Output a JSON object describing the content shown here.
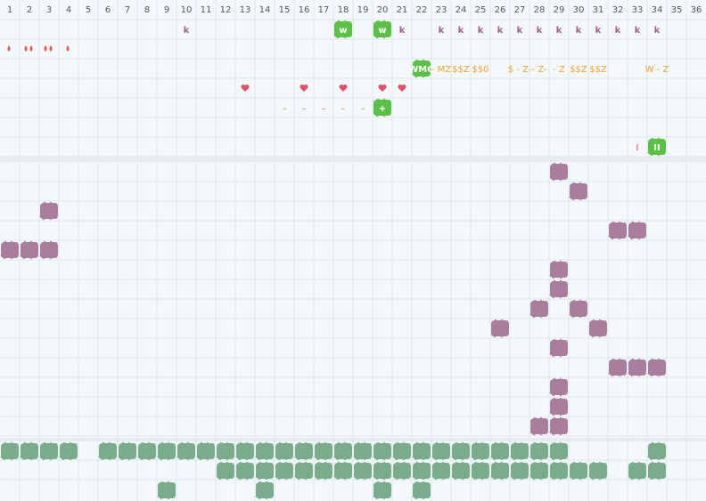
{
  "header": {
    "columns": [
      1,
      2,
      3,
      4,
      5,
      6,
      7,
      8,
      9,
      10,
      11,
      12,
      13,
      14,
      15,
      16,
      17,
      18,
      19,
      20,
      21,
      22,
      23,
      24,
      25,
      26,
      27,
      28,
      29,
      30,
      31,
      32,
      33,
      34,
      35,
      36
    ]
  },
  "rows": [
    {
      "cells": [
        null,
        null,
        null,
        null,
        null,
        null,
        null,
        null,
        null,
        "k",
        null,
        null,
        null,
        null,
        null,
        null,
        null,
        "w",
        null,
        "w",
        "k",
        null,
        "k",
        "k",
        "k",
        "k",
        "k",
        "k",
        "k",
        "k",
        "k",
        "k",
        "k",
        "k",
        null,
        null
      ]
    },
    {
      "cells": [
        null,
        null,
        null,
        null,
        null,
        null,
        null,
        null,
        null,
        null,
        null,
        null,
        null,
        null,
        null,
        null,
        null,
        null,
        null,
        null,
        null,
        null,
        null,
        null,
        null,
        null,
        null,
        null,
        null,
        null,
        null,
        null,
        null,
        null,
        null,
        null
      ]
    },
    {
      "cells": [
        null,
        null,
        null,
        null,
        null,
        null,
        null,
        null,
        null,
        null,
        null,
        null,
        null,
        null,
        null,
        null,
        null,
        null,
        null,
        null,
        null,
        "WMO",
        "- MZ",
        "$$Z",
        "$$0",
        null,
        "$ - Z-",
        "- Z-",
        "- Z",
        "$$Z",
        "$$Z",
        null,
        null,
        "W - Z",
        null,
        null
      ]
    },
    {
      "cells": [
        null,
        null,
        null,
        null,
        null,
        null,
        null,
        null,
        null,
        null,
        null,
        null,
        null,
        null,
        null,
        null,
        null,
        null,
        null,
        null,
        null,
        null,
        null,
        null,
        null,
        null,
        null,
        null,
        null,
        null,
        null,
        null,
        null,
        null,
        null,
        null
      ]
    },
    {
      "cells": [
        null,
        null,
        null,
        null,
        null,
        null,
        null,
        null,
        null,
        null,
        null,
        null,
        null,
        null,
        "–",
        "–",
        "–",
        "–",
        "–",
        "+",
        null,
        null,
        null,
        null,
        null,
        null,
        null,
        null,
        null,
        null,
        null,
        null,
        null,
        null,
        null,
        null
      ]
    },
    {
      "cells": [
        null,
        null,
        null,
        null,
        null,
        null,
        null,
        null,
        null,
        null,
        null,
        null,
        null,
        null,
        null,
        null,
        null,
        null,
        null,
        null,
        null,
        null,
        null,
        null,
        null,
        null,
        null,
        null,
        null,
        null,
        null,
        null,
        null,
        null,
        null,
        null
      ]
    },
    {
      "cells": [
        null,
        null,
        null,
        null,
        null,
        null,
        null,
        null,
        null,
        null,
        null,
        null,
        null,
        null,
        null,
        null,
        null,
        null,
        null,
        null,
        null,
        null,
        null,
        null,
        null,
        null,
        null,
        null,
        null,
        null,
        null,
        null,
        "I",
        "II",
        null,
        null
      ]
    }
  ]
}
